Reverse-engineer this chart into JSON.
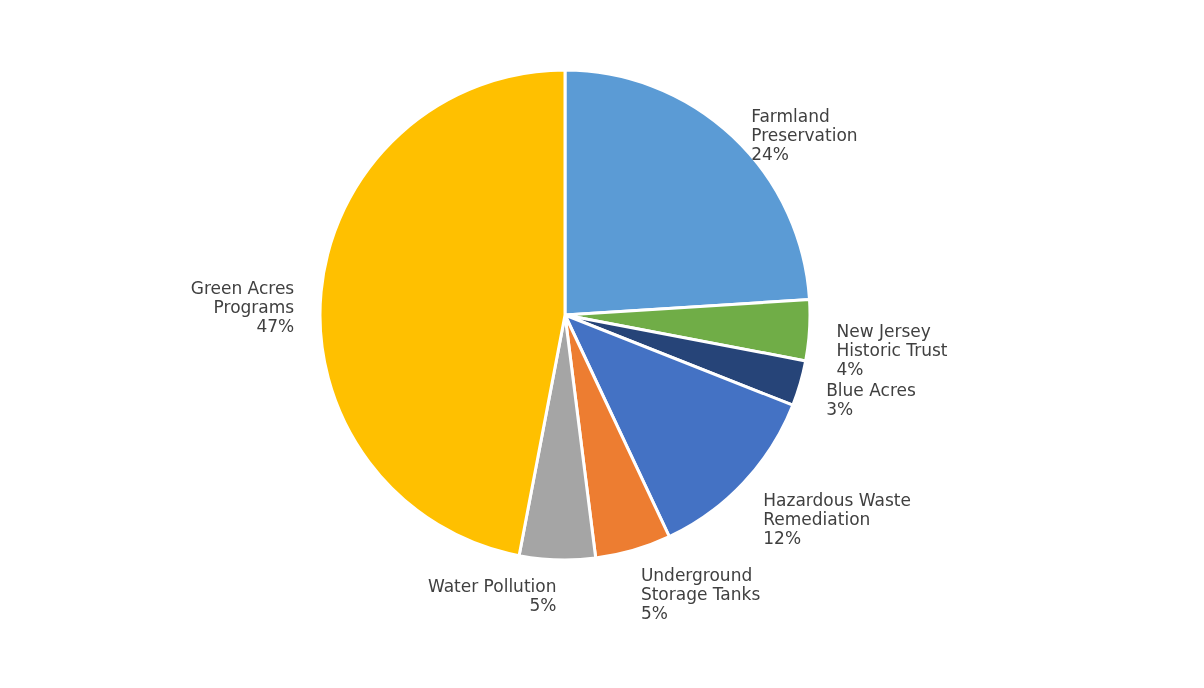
{
  "chart_data": {
    "type": "pie",
    "categories": [
      "Farmland\nPreservation",
      "New Jersey\nHistoric Trust",
      "Blue Acres",
      "Hazardous Waste\nRemediation",
      "Underground\nStorage Tanks",
      "Water Pollution",
      "Green Acres\nPrograms"
    ],
    "values": [
      24,
      4,
      3,
      12,
      5,
      5,
      47
    ],
    "value_labels": [
      "24%",
      "4%",
      "3%",
      "12%",
      "5%",
      "5%",
      "47%"
    ],
    "colors": [
      "#5b9bd5",
      "#70ad47",
      "#264478",
      "#4472c4",
      "#ed7d31",
      "#a5a5a5",
      "#ffc000"
    ],
    "legend": false
  }
}
